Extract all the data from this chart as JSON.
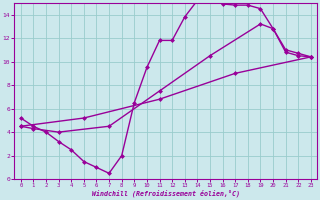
{
  "background_color": "#cce8ec",
  "grid_color": "#99cccc",
  "line_color": "#990099",
  "marker": "D",
  "markersize": 2.5,
  "linewidth": 1.0,
  "xlim": [
    -0.5,
    23.5
  ],
  "ylim": [
    0,
    15
  ],
  "xticks": [
    0,
    1,
    2,
    3,
    4,
    5,
    6,
    7,
    8,
    9,
    10,
    11,
    12,
    13,
    14,
    15,
    16,
    17,
    18,
    19,
    20,
    21,
    22,
    23
  ],
  "yticks": [
    0,
    2,
    4,
    6,
    8,
    10,
    12,
    14
  ],
  "xlabel": "Windchill (Refroidissement éolien,°C)",
  "line1_x": [
    0,
    1,
    2,
    3,
    4,
    5,
    6,
    7,
    8,
    9,
    10,
    11,
    12,
    13,
    14,
    15,
    16,
    17,
    18,
    19,
    20,
    21,
    22,
    23
  ],
  "line1_y": [
    5.2,
    4.5,
    4.0,
    3.2,
    2.5,
    1.5,
    1.0,
    0.5,
    2.0,
    6.5,
    9.5,
    11.8,
    11.8,
    13.8,
    15.2,
    15.3,
    14.9,
    14.8,
    14.8,
    14.5,
    12.8,
    10.8,
    10.5,
    10.4
  ],
  "line2_x": [
    0,
    1,
    3,
    7,
    11,
    15,
    19,
    20,
    21,
    22,
    23
  ],
  "line2_y": [
    4.5,
    4.3,
    4.0,
    4.5,
    7.5,
    10.5,
    13.2,
    12.8,
    11.0,
    10.7,
    10.4
  ],
  "line3_x": [
    0,
    5,
    11,
    17,
    23
  ],
  "line3_y": [
    4.5,
    5.2,
    6.8,
    9.0,
    10.4
  ]
}
